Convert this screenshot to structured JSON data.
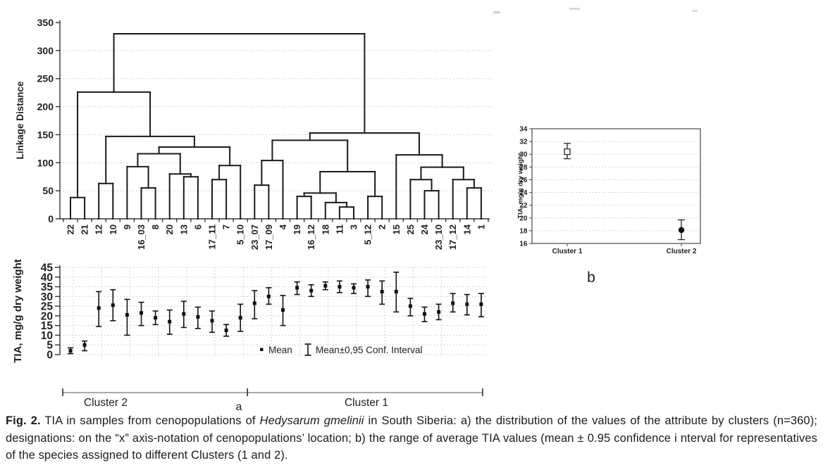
{
  "chart_data": [
    {
      "id": "dendrogram",
      "type": "dendrogram",
      "ylabel": "Linkage Distance",
      "ylim": [
        0,
        350
      ],
      "ytick_step": 50,
      "grid": "horizontal-dotted",
      "leaves": [
        "22",
        "21",
        "12",
        "10",
        "9",
        "16_03",
        "8",
        "20",
        "13",
        "6",
        "17_11",
        "7",
        "5_10",
        "23_07",
        "17_09",
        "4",
        "19",
        "16_12",
        "18",
        "11",
        "3",
        "5_12",
        "2",
        "15",
        "25",
        "24",
        "23_10",
        "17_12",
        "14",
        "1"
      ],
      "merges": [
        [
          "22",
          "21",
          38
        ],
        [
          "12",
          "10",
          63
        ],
        [
          "16_03",
          "8",
          55
        ],
        [
          "9",
          "@2",
          93
        ],
        [
          "13",
          "6",
          75
        ],
        [
          "20",
          "@4",
          80
        ],
        [
          "17_11",
          "7",
          70
        ],
        [
          "@6",
          "5_10",
          95
        ],
        [
          "@3",
          "@5",
          116
        ],
        [
          "@8",
          "@7",
          128
        ],
        [
          "@1",
          "@9",
          147
        ],
        [
          "@0",
          "@10",
          226
        ],
        [
          "23_07",
          "17_09",
          60
        ],
        [
          "@12",
          "4",
          104
        ],
        [
          "19",
          "16_12",
          40
        ],
        [
          "11",
          "3",
          21
        ],
        [
          "18",
          "@15",
          29
        ],
        [
          "@14",
          "@16",
          46
        ],
        [
          "5_12",
          "2",
          40
        ],
        [
          "@17",
          "@18",
          84
        ],
        [
          "@13",
          "@19",
          140
        ],
        [
          "24",
          "23_10",
          50
        ],
        [
          "25",
          "@21",
          70
        ],
        [
          "14",
          "1",
          55
        ],
        [
          "17_12",
          "@23",
          70
        ],
        [
          "@22",
          "@24",
          92
        ],
        [
          "15",
          "@25",
          114
        ],
        [
          "@20",
          "@26",
          153
        ],
        [
          "@11",
          "@27",
          330
        ]
      ]
    },
    {
      "id": "tia-by-cenopopulation",
      "type": "scatter-errorbar",
      "ylabel": "TIA, mg/g dry weight",
      "ylim": [
        0,
        45
      ],
      "ytick_step": 5,
      "grid": "dotted",
      "legend": [
        "Mean",
        "Mean±0,95 Conf. Interval"
      ],
      "points": [
        {
          "x": "22",
          "mean": 2,
          "lo": 0.5,
          "hi": 3.5
        },
        {
          "x": "21",
          "mean": 5,
          "lo": 2,
          "hi": 7
        },
        {
          "x": "12",
          "mean": 24,
          "lo": 14.5,
          "hi": 32.5
        },
        {
          "x": "10",
          "mean": 25.5,
          "lo": 17.5,
          "hi": 33.5
        },
        {
          "x": "9",
          "mean": 20.5,
          "lo": 10,
          "hi": 28.5
        },
        {
          "x": "16_03",
          "mean": 21.5,
          "lo": 15,
          "hi": 27
        },
        {
          "x": "8",
          "mean": 19,
          "lo": 15.5,
          "hi": 22.5
        },
        {
          "x": "20",
          "mean": 17,
          "lo": 10.5,
          "hi": 23
        },
        {
          "x": "13",
          "mean": 21,
          "lo": 14,
          "hi": 27.5
        },
        {
          "x": "6",
          "mean": 19.5,
          "lo": 13.5,
          "hi": 24.5
        },
        {
          "x": "17_11",
          "mean": 17.5,
          "lo": 11.5,
          "hi": 22.5
        },
        {
          "x": "7",
          "mean": 12.5,
          "lo": 9.5,
          "hi": 15.5
        },
        {
          "x": "5_10",
          "mean": 19,
          "lo": 12,
          "hi": 26
        },
        {
          "x": "23_07",
          "mean": 26.5,
          "lo": 18.5,
          "hi": 33
        },
        {
          "x": "17_09",
          "mean": 30,
          "lo": 26,
          "hi": 34.5
        },
        {
          "x": "4",
          "mean": 23,
          "lo": 15,
          "hi": 30.5
        },
        {
          "x": "19",
          "mean": 34.5,
          "lo": 31,
          "hi": 37.5
        },
        {
          "x": "16_12",
          "mean": 33,
          "lo": 30,
          "hi": 36
        },
        {
          "x": "18",
          "mean": 35.5,
          "lo": 33.5,
          "hi": 37.5
        },
        {
          "x": "11",
          "mean": 35,
          "lo": 32,
          "hi": 38
        },
        {
          "x": "3",
          "mean": 34.5,
          "lo": 31.5,
          "hi": 36.5
        },
        {
          "x": "5_12",
          "mean": 35,
          "lo": 30,
          "hi": 38.5
        },
        {
          "x": "2",
          "mean": 32.5,
          "lo": 26,
          "hi": 38
        },
        {
          "x": "15",
          "mean": 32.5,
          "lo": 22,
          "hi": 42.5
        },
        {
          "x": "25",
          "mean": 25,
          "lo": 20,
          "hi": 29
        },
        {
          "x": "24",
          "mean": 21,
          "lo": 17,
          "hi": 24.5
        },
        {
          "x": "23_10",
          "mean": 22,
          "lo": 18,
          "hi": 26
        },
        {
          "x": "17_12",
          "mean": 26.5,
          "lo": 22,
          "hi": 31.5
        },
        {
          "x": "14",
          "mean": 26,
          "lo": 20.5,
          "hi": 31
        },
        {
          "x": "1",
          "mean": 26,
          "lo": 19.5,
          "hi": 31.5
        }
      ]
    },
    {
      "id": "tia-by-cluster",
      "type": "scatter-errorbar",
      "panel_label": "b",
      "ylabel": "TIA, mg/g dry weight",
      "ylim": [
        16,
        34
      ],
      "ytick_step": 2,
      "grid": "horizontal-dotted",
      "categories": [
        "Cluster 1",
        "Cluster 2"
      ],
      "points": [
        {
          "x": "Cluster 1",
          "mean": 30.4,
          "lo": 29.3,
          "hi": 31.7,
          "marker": "open-square"
        },
        {
          "x": "Cluster 2",
          "mean": 18.1,
          "lo": 16.6,
          "hi": 19.7,
          "marker": "filled-circle"
        }
      ]
    }
  ],
  "panel_a": {
    "label": "a",
    "brackets": [
      {
        "label": "Cluster 2",
        "from_leaf": "22",
        "to_leaf": "5_10"
      },
      {
        "label": "Cluster 1",
        "from_leaf": "23_07",
        "to_leaf": "1"
      }
    ]
  },
  "caption": {
    "fig_label": "Fig. 2.",
    "before_italic": " TIA in samples from cenopopulations of ",
    "italic": "Hedysarum gmelinii",
    "after_italic": " in South Siberia: a) the distribution of the values of the attribute by clusters (n=360); designations: on the “x” axis-notation of cenopopulations’ location; b) the range of average TIA values (mean ± 0.95 confidence i nterval for representatives of the species assigned to different Clusters (1 and 2)."
  }
}
